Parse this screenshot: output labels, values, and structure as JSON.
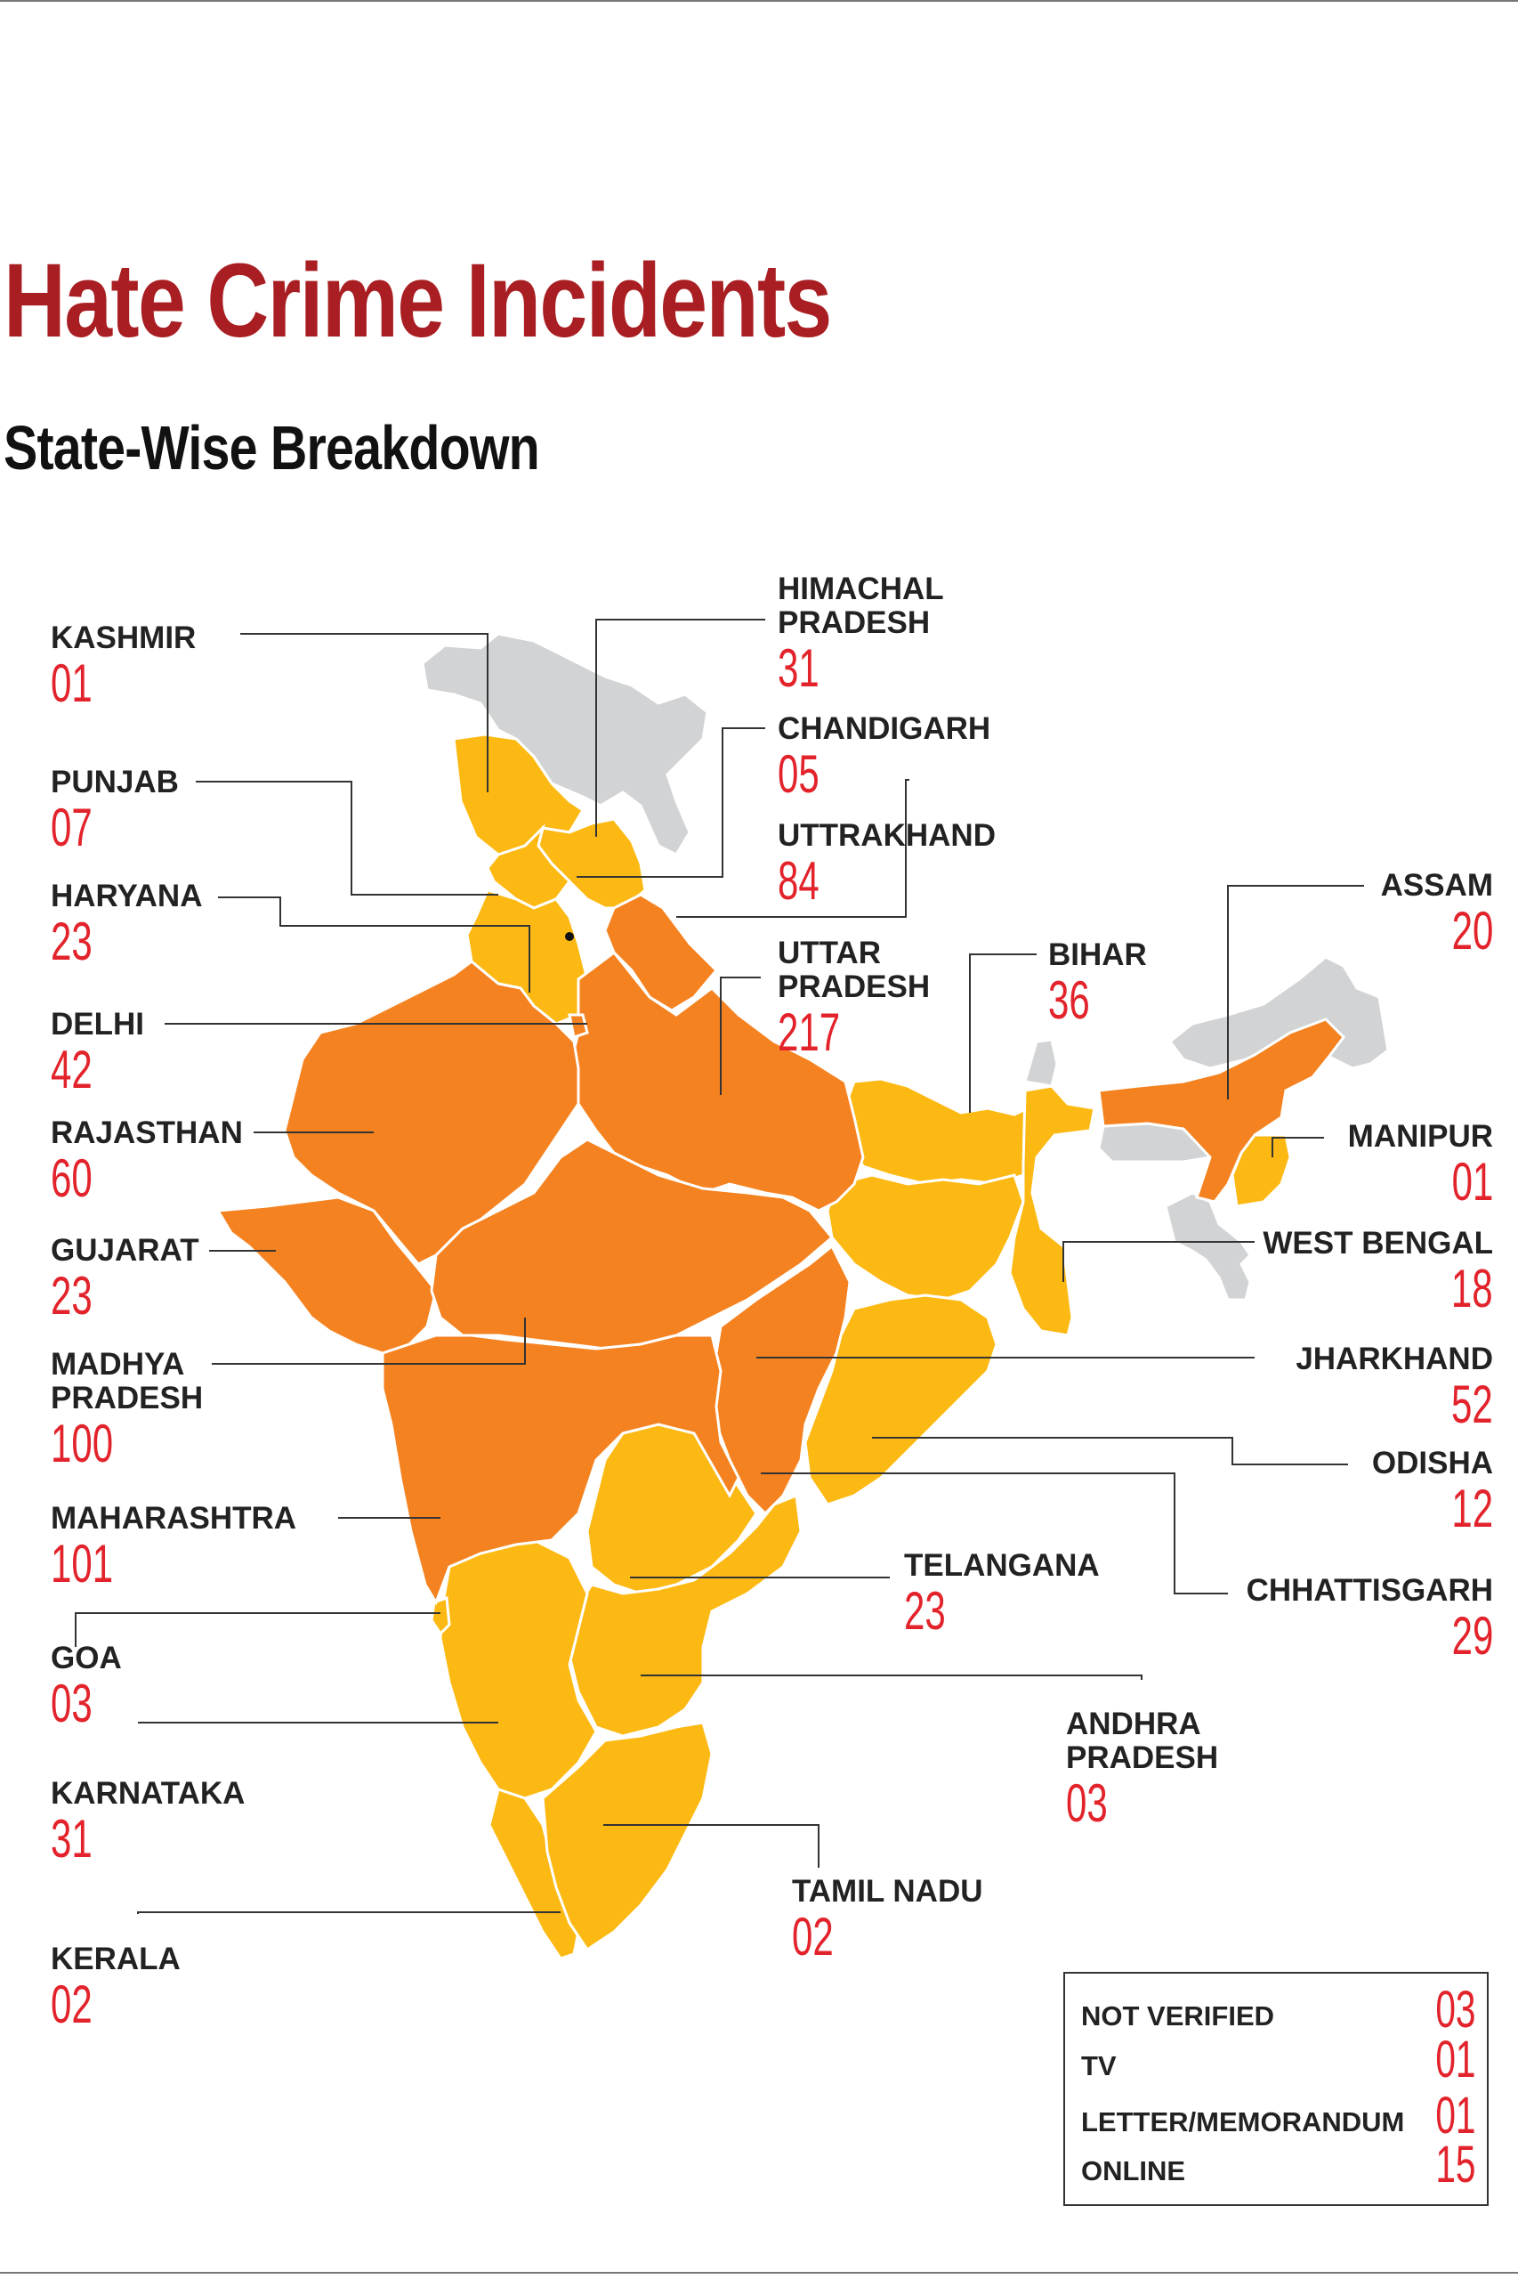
{
  "title": "Hate Crime Incidents",
  "subtitle": "State-Wise Breakdown",
  "colors": {
    "title": "#a91e22",
    "number": "#e3232b",
    "high": "#f58220",
    "low": "#fdb913",
    "none": "#d1d3d4"
  },
  "states": [
    {
      "name": "KASHMIR",
      "count": "01"
    },
    {
      "name": "PUNJAB",
      "count": "07"
    },
    {
      "name": "HARYANA",
      "count": "23"
    },
    {
      "name": "DELHI",
      "count": "42"
    },
    {
      "name": "RAJASTHAN",
      "count": "60"
    },
    {
      "name": "GUJARAT",
      "count": "23"
    },
    {
      "name": "MADHYA PRADESH",
      "count": "100"
    },
    {
      "name": "MAHARASHTRA",
      "count": "101"
    },
    {
      "name": "GOA",
      "count": "03"
    },
    {
      "name": "KARNATAKA",
      "count": "31"
    },
    {
      "name": "KERALA",
      "count": "02"
    },
    {
      "name": "HIMACHAL PRADESH",
      "count": "31"
    },
    {
      "name": "CHANDIGARH",
      "count": "05"
    },
    {
      "name": "UTTRAKHAND",
      "count": "84"
    },
    {
      "name": "UTTAR PRADESH",
      "count": "217"
    },
    {
      "name": "BIHAR",
      "count": "36"
    },
    {
      "name": "TELANGANA",
      "count": "23"
    },
    {
      "name": "ANDHRA PRADESH",
      "count": "03"
    },
    {
      "name": "TAMIL NADU",
      "count": "02"
    },
    {
      "name": "ASSAM",
      "count": "20"
    },
    {
      "name": "MANIPUR",
      "count": "01"
    },
    {
      "name": "WEST BENGAL",
      "count": "18"
    },
    {
      "name": "JHARKHAND",
      "count": "52"
    },
    {
      "name": "ODISHA",
      "count": "12"
    },
    {
      "name": "CHHATTISGARH",
      "count": "29"
    }
  ],
  "legend": [
    {
      "label": "NOT VERIFIED",
      "count": "03"
    },
    {
      "label": "TV",
      "count": "01"
    },
    {
      "label": "LETTER/MEMORANDUM",
      "count": "01"
    },
    {
      "label": "ONLINE",
      "count": "15"
    }
  ]
}
